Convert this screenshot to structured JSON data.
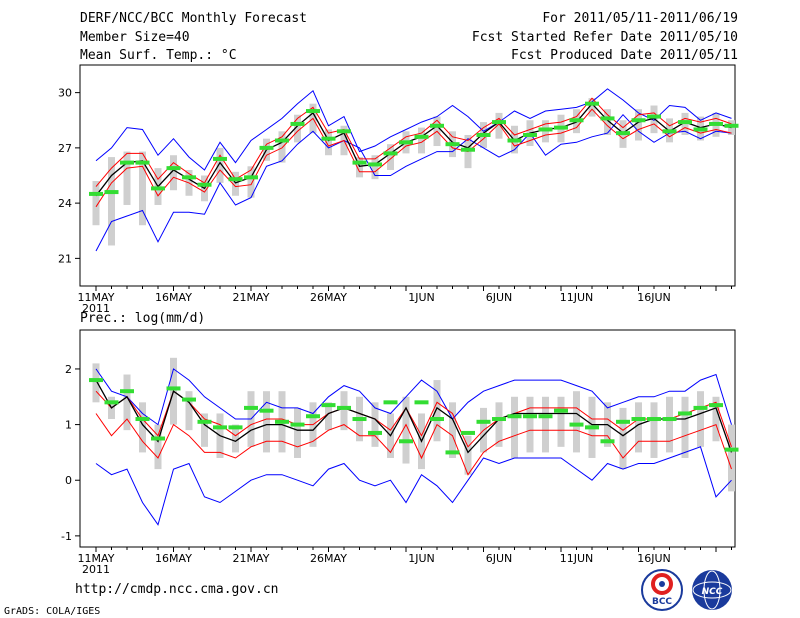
{
  "header": {
    "title": "DERF/NCC/BCC Monthly Forecast",
    "member_size": "Member Size=40",
    "variable": "Mean Surf. Temp.: °C",
    "period": "For 2011/05/11-2011/06/19",
    "started_refer": "Fcst Started Refer Date 2011/05/10",
    "produced": "Fcst Produced Date 2011/05/11"
  },
  "footer": {
    "url": "http://cmdp.ncc.cma.gov.cn",
    "grads": "GrADS: COLA/IGES",
    "logo_bcc": "BCC",
    "logo_ncc": "NCC"
  },
  "colors": {
    "ensemble_mean": "#000000",
    "upper_lower_band": "#0000ff",
    "spread_band": "#ff0000",
    "box": "#cfcfcf",
    "marker": "#33dd33"
  },
  "chart_data": [
    {
      "type": "line",
      "title": "Mean Surf. Temp.: °C",
      "xlabel": "",
      "ylabel": "",
      "ylim": [
        19.5,
        31.5
      ],
      "yticks": [
        21,
        24,
        27,
        30
      ],
      "x_tick_labels": [
        {
          "day": 0,
          "label": "11MAY",
          "sub": "2011"
        },
        {
          "day": 5,
          "label": "16MAY"
        },
        {
          "day": 10,
          "label": "21MAY"
        },
        {
          "day": 15,
          "label": "26MAY"
        },
        {
          "day": 21,
          "label": "1JUN"
        },
        {
          "day": 26,
          "label": "6JUN"
        },
        {
          "day": 31,
          "label": "11JUN"
        },
        {
          "day": 36,
          "label": "16JUN"
        }
      ],
      "series": [
        {
          "name": "max",
          "color": "#0000ff",
          "values": [
            21.4,
            23.0,
            23.3,
            23.6,
            21.9,
            23.5,
            23.5,
            23.4,
            25.1,
            23.9,
            24.3,
            26.0,
            26.3,
            27.2,
            27.9,
            27.0,
            27.4,
            27.0,
            25.5,
            25.5,
            26.0,
            26.4,
            26.8,
            26.8,
            27.5,
            27.0,
            26.5,
            26.9,
            27.8,
            26.6,
            27.2,
            27.3,
            27.6,
            27.8,
            28.8,
            27.9,
            27.3,
            27.8,
            27.9,
            27.5,
            27.9,
            27.8
          ]
        },
        {
          "name": "min",
          "color": "#0000ff",
          "values": [
            26.3,
            27.0,
            28.1,
            28.0,
            26.6,
            27.5,
            26.5,
            25.8,
            27.3,
            26.2,
            27.4,
            28.0,
            28.6,
            29.4,
            30.1,
            28.2,
            28.7,
            26.8,
            27.1,
            27.6,
            28.0,
            28.4,
            28.7,
            29.3,
            28.7,
            27.9,
            28.4,
            29.0,
            28.6,
            29.0,
            29.1,
            29.2,
            29.5,
            30.2,
            29.6,
            28.9,
            28.5,
            29.3,
            29.2,
            28.5,
            28.9,
            28.6
          ]
        },
        {
          "name": "upper",
          "color": "#ff0000",
          "values": [
            24.9,
            25.9,
            26.7,
            26.7,
            25.3,
            26.2,
            25.6,
            25.1,
            26.6,
            25.3,
            25.8,
            27.2,
            27.6,
            28.6,
            29.2,
            27.8,
            28.0,
            26.4,
            26.4,
            27.0,
            27.6,
            27.8,
            28.5,
            27.6,
            27.4,
            28.1,
            28.6,
            27.7,
            28.0,
            28.3,
            28.4,
            28.7,
            29.7,
            28.8,
            28.1,
            28.8,
            28.9,
            28.2,
            28.6,
            28.4,
            28.6,
            28.3
          ]
        },
        {
          "name": "lower",
          "color": "#ff0000",
          "values": [
            23.8,
            25.1,
            25.9,
            26.0,
            24.4,
            25.4,
            25.1,
            24.6,
            25.8,
            24.9,
            25.0,
            26.6,
            27.0,
            27.9,
            28.6,
            27.1,
            27.4,
            25.7,
            25.7,
            26.4,
            27.1,
            27.3,
            27.9,
            27.0,
            26.8,
            27.5,
            28.3,
            27.1,
            27.4,
            27.7,
            27.8,
            28.1,
            29.1,
            28.2,
            27.5,
            28.0,
            28.3,
            27.6,
            28.1,
            27.8,
            28.0,
            27.8
          ]
        },
        {
          "name": "mean",
          "color": "#000000",
          "values": [
            24.4,
            25.5,
            26.2,
            26.3,
            24.9,
            25.8,
            25.3,
            24.8,
            26.2,
            25.1,
            25.4,
            26.9,
            27.3,
            28.2,
            28.9,
            27.4,
            27.8,
            26.0,
            26.1,
            26.7,
            27.3,
            27.6,
            28.2,
            27.3,
            27.0,
            27.8,
            28.4,
            27.4,
            27.8,
            28.0,
            28.1,
            28.4,
            29.4,
            28.5,
            27.8,
            28.4,
            28.6,
            27.9,
            28.4,
            28.1,
            28.3,
            28.1
          ]
        }
      ],
      "boxes": {
        "low": [
          22.8,
          21.7,
          23.9,
          22.8,
          23.9,
          24.7,
          24.4,
          24.1,
          25.1,
          24.4,
          24.3,
          26.3,
          26.2,
          27.3,
          27.8,
          26.6,
          26.6,
          25.4,
          25.3,
          25.8,
          26.7,
          26.7,
          27.1,
          26.5,
          25.9,
          27.0,
          27.5,
          26.7,
          27.1,
          27.3,
          27.3,
          27.8,
          28.7,
          27.7,
          27.0,
          27.4,
          27.8,
          27.3,
          27.7,
          27.4,
          27.6,
          27.7
        ],
        "high": [
          25.2,
          26.5,
          26.8,
          26.8,
          25.9,
          26.6,
          25.8,
          25.5,
          27.0,
          25.7,
          26.0,
          27.5,
          27.9,
          28.8,
          29.4,
          28.0,
          28.2,
          26.5,
          26.6,
          27.2,
          27.9,
          28.1,
          28.7,
          27.9,
          27.7,
          28.4,
          28.9,
          28.2,
          28.5,
          28.5,
          28.8,
          29.1,
          29.7,
          29.1,
          28.5,
          29.1,
          29.3,
          28.6,
          28.9,
          28.7,
          28.9,
          28.5
        ]
      },
      "markers": [
        24.5,
        24.6,
        26.2,
        26.2,
        24.8,
        25.9,
        25.4,
        25.0,
        26.4,
        25.3,
        25.4,
        27.0,
        27.4,
        28.3,
        29.0,
        27.5,
        27.9,
        26.2,
        26.1,
        26.7,
        27.3,
        27.6,
        28.2,
        27.2,
        26.9,
        27.7,
        28.4,
        27.4,
        27.7,
        28.0,
        28.1,
        28.5,
        29.4,
        28.6,
        27.8,
        28.5,
        28.7,
        27.9,
        28.4,
        28.0,
        28.3,
        28.2
      ]
    },
    {
      "type": "line",
      "title": "Prec.: log(mm/d)",
      "xlabel": "",
      "ylabel": "",
      "ylim": [
        -1.2,
        2.7
      ],
      "yticks": [
        -1,
        0,
        1,
        2
      ],
      "x_tick_labels": [
        {
          "day": 0,
          "label": "11MAY",
          "sub": "2011"
        },
        {
          "day": 5,
          "label": "16MAY"
        },
        {
          "day": 10,
          "label": "21MAY"
        },
        {
          "day": 15,
          "label": "26MAY"
        },
        {
          "day": 21,
          "label": "1JUN"
        },
        {
          "day": 26,
          "label": "6JUN"
        },
        {
          "day": 31,
          "label": "11JUN"
        },
        {
          "day": 36,
          "label": "16JUN"
        }
      ],
      "series": [
        {
          "name": "max",
          "color": "#0000ff",
          "values": [
            2.0,
            1.6,
            1.5,
            1.2,
            1.0,
            2.0,
            1.8,
            1.5,
            1.3,
            1.1,
            1.1,
            1.4,
            1.3,
            1.3,
            1.2,
            1.5,
            1.7,
            1.6,
            1.3,
            1.2,
            1.5,
            1.8,
            1.6,
            1.1,
            1.4,
            1.6,
            1.7,
            1.8,
            1.8,
            1.8,
            1.8,
            1.7,
            1.6,
            1.3,
            1.4,
            1.5,
            1.5,
            1.6,
            1.6,
            1.8,
            1.9,
            1.0
          ]
        },
        {
          "name": "min",
          "color": "#0000ff",
          "values": [
            0.3,
            0.1,
            0.2,
            -0.4,
            -0.8,
            0.2,
            0.3,
            -0.3,
            -0.4,
            -0.2,
            0.0,
            0.1,
            0.1,
            0.0,
            -0.1,
            0.2,
            0.3,
            0.0,
            -0.1,
            0.0,
            -0.4,
            0.1,
            -0.1,
            -0.4,
            0.0,
            0.4,
            0.3,
            0.4,
            0.4,
            0.4,
            0.4,
            0.2,
            0.0,
            0.3,
            0.2,
            0.3,
            0.3,
            0.4,
            0.5,
            0.6,
            -0.3,
            0.0
          ]
        },
        {
          "name": "upper",
          "color": "#ff0000",
          "values": [
            1.6,
            1.3,
            1.5,
            1.1,
            0.8,
            1.6,
            1.4,
            1.1,
            1.0,
            0.8,
            1.0,
            1.1,
            1.1,
            1.0,
            1.0,
            1.2,
            1.3,
            1.2,
            1.1,
            0.9,
            1.3,
            0.8,
            1.4,
            1.2,
            0.6,
            0.9,
            1.1,
            1.2,
            1.3,
            1.3,
            1.3,
            1.3,
            1.1,
            1.1,
            0.9,
            1.1,
            1.1,
            1.1,
            1.2,
            1.3,
            1.4,
            0.6
          ]
        },
        {
          "name": "lower",
          "color": "#ff0000",
          "values": [
            1.2,
            0.8,
            1.1,
            0.7,
            0.4,
            1.0,
            0.8,
            0.5,
            0.5,
            0.4,
            0.6,
            0.7,
            0.7,
            0.6,
            0.7,
            0.9,
            1.0,
            0.8,
            0.8,
            0.5,
            1.0,
            0.4,
            1.0,
            0.8,
            0.1,
            0.5,
            0.7,
            0.8,
            0.9,
            0.9,
            0.9,
            0.9,
            0.8,
            0.8,
            0.4,
            0.7,
            0.7,
            0.7,
            0.8,
            0.9,
            1.0,
            0.2
          ]
        },
        {
          "name": "mean",
          "color": "#000000",
          "values": [
            1.8,
            1.3,
            1.5,
            1.0,
            0.7,
            1.6,
            1.4,
            1.0,
            0.8,
            0.7,
            0.9,
            1.0,
            1.0,
            0.9,
            0.9,
            1.2,
            1.3,
            1.2,
            1.1,
            0.8,
            1.3,
            0.7,
            1.3,
            1.1,
            0.5,
            0.8,
            1.1,
            1.2,
            1.2,
            1.2,
            1.2,
            1.2,
            1.0,
            1.0,
            0.8,
            1.0,
            1.1,
            1.1,
            1.1,
            1.2,
            1.3,
            0.5
          ]
        }
      ],
      "boxes": {
        "low": [
          1.4,
          1.1,
          0.9,
          0.5,
          0.2,
          1.0,
          0.9,
          0.6,
          0.4,
          0.5,
          0.6,
          0.5,
          0.5,
          0.4,
          0.6,
          0.9,
          0.9,
          0.7,
          0.6,
          0.4,
          0.3,
          0.2,
          0.7,
          0.4,
          0.1,
          0.5,
          0.6,
          0.4,
          0.5,
          0.5,
          0.6,
          0.5,
          0.4,
          0.6,
          0.2,
          0.5,
          0.4,
          0.5,
          0.4,
          0.6,
          0.7,
          -0.2
        ],
        "high": [
          2.1,
          1.5,
          1.9,
          1.4,
          1.0,
          2.2,
          1.6,
          1.2,
          1.2,
          1.0,
          1.6,
          1.6,
          1.6,
          1.3,
          1.4,
          1.4,
          1.6,
          1.5,
          1.4,
          1.2,
          1.5,
          1.2,
          1.8,
          1.4,
          0.8,
          1.3,
          1.4,
          1.5,
          1.5,
          1.5,
          1.5,
          1.6,
          1.5,
          1.4,
          1.3,
          1.4,
          1.4,
          1.5,
          1.5,
          1.6,
          1.5,
          1.0
        ]
      },
      "markers": [
        1.8,
        1.4,
        1.6,
        1.1,
        0.75,
        1.65,
        1.45,
        1.05,
        0.95,
        0.95,
        1.3,
        1.25,
        1.05,
        1.0,
        1.15,
        1.35,
        1.3,
        1.1,
        0.85,
        1.4,
        0.7,
        1.4,
        1.1,
        0.5,
        0.85,
        1.05,
        1.1,
        1.15,
        1.15,
        1.15,
        1.25,
        1.0,
        0.95,
        0.7,
        1.05,
        1.1,
        1.1,
        1.1,
        1.2,
        1.3,
        1.35,
        0.55
      ]
    }
  ]
}
